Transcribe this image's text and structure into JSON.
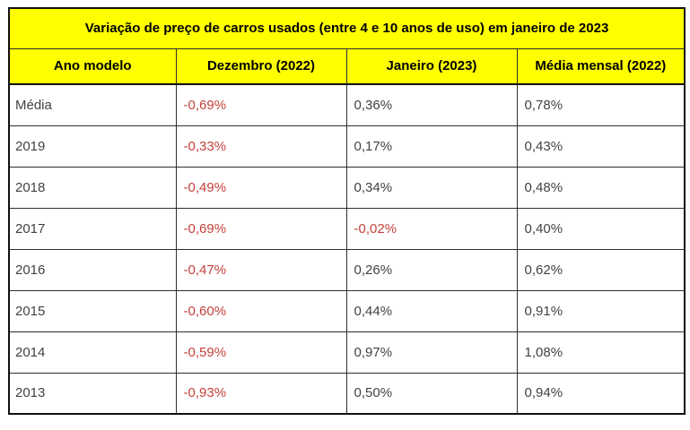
{
  "chart_data": {
    "type": "table",
    "title": "Variação de preço de carros usados (entre 4 e 10 anos de uso) em janeiro de 2023",
    "columns": [
      "Ano modelo",
      "Dezembro (2022)",
      "Janeiro (2023)",
      "Média mensal (2022)"
    ],
    "column_keys": [
      "ano-modelo",
      "dezembro-2022",
      "janeiro-2023",
      "media-mensal-2022"
    ],
    "rows": [
      [
        "Média",
        "-0,69%",
        "0,36%",
        "0,78%"
      ],
      [
        "2019",
        "-0,33%",
        "0,17%",
        "0,43%"
      ],
      [
        "2018",
        "-0,49%",
        "0,34%",
        "0,48%"
      ],
      [
        "2017",
        "-0,69%",
        "-0,02%",
        "0,40%"
      ],
      [
        "2016",
        "-0,47%",
        "0,26%",
        "0,62%"
      ],
      [
        "2015",
        "-0,60%",
        "0,44%",
        "0,91%"
      ],
      [
        "2014",
        "-0,59%",
        "0,97%",
        "1,08%"
      ],
      [
        "2013",
        "-0,93%",
        "0,50%",
        "0,94%"
      ]
    ]
  },
  "colors": {
    "header_bg": "#FFFF00",
    "border_inner": "#2E2E2E",
    "border_outer": "#111111",
    "text": "#3F4245",
    "negative": "#C5413B",
    "header_text": "#000000",
    "background": "#FFFFFF"
  }
}
